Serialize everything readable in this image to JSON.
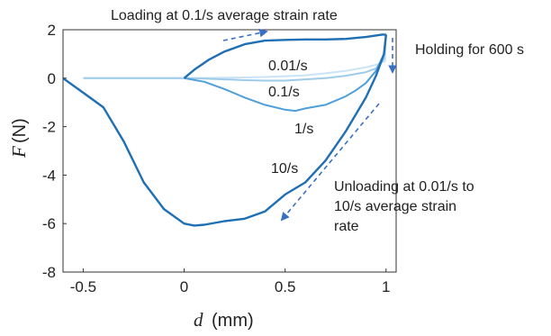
{
  "chart_data": {
    "type": "line",
    "title": "",
    "xlabel_symbol": "d",
    "xlabel_unit": "(mm)",
    "ylabel_symbol": "F",
    "ylabel_unit": "(N)",
    "xlim": [
      -0.6,
      1.05
    ],
    "ylim": [
      -8,
      2
    ],
    "xticks": [
      -0.5,
      0,
      0.5,
      1
    ],
    "xtick_labels": [
      "-0.5",
      "0",
      "0.5",
      "1"
    ],
    "yticks": [
      2,
      0,
      -2,
      -4,
      -6,
      -8
    ],
    "ytick_labels": [
      "2",
      "0",
      "-2",
      "-4",
      "-6",
      "-8"
    ],
    "grid": false,
    "colors": {
      "loading": "#1f6fb4",
      "rate_0_01": "#c9e4f5",
      "rate_0_1": "#9fcbea",
      "rate_1": "#4f9fd9",
      "rate_10": "#1f6fb4",
      "arrow": "#3a6fc4"
    },
    "annotations": {
      "loading": "Loading at 0.1/s average strain rate",
      "holding": "Holding for 600 s",
      "unloading_line1": "Unloading at 0.01/s to",
      "unloading_line2": "10/s average strain",
      "unloading_line3": "rate",
      "rate_0_01": "0.01/s",
      "rate_0_1": "0.1/s",
      "rate_1": "1/s",
      "rate_10": "10/s"
    },
    "series": [
      {
        "key": "loading",
        "label": "",
        "x": [
          0,
          0.05,
          0.12,
          0.2,
          0.3,
          0.4,
          0.5,
          0.6,
          0.7,
          0.8,
          0.9,
          0.98,
          1.0
        ],
        "y": [
          0,
          0.35,
          0.75,
          1.1,
          1.4,
          1.55,
          1.58,
          1.6,
          1.6,
          1.62,
          1.7,
          1.8,
          1.8
        ]
      },
      {
        "key": "rate_0_01",
        "label": "0.01/s",
        "x": [
          1.0,
          0.995,
          0.95,
          0.9,
          0.8,
          0.7,
          0.6,
          0.5,
          0.4,
          0.3,
          0.2,
          0.1,
          0.0,
          -0.2,
          -0.5
        ],
        "y": [
          1.8,
          0.7,
          0.55,
          0.45,
          0.3,
          0.2,
          0.12,
          0.08,
          0.05,
          0.03,
          0.02,
          0.01,
          0.0,
          0.0,
          0.0
        ]
      },
      {
        "key": "rate_0_1",
        "label": "0.1/s",
        "x": [
          1.0,
          0.99,
          0.95,
          0.9,
          0.8,
          0.7,
          0.6,
          0.5,
          0.4,
          0.3,
          0.2,
          0.1,
          0.0,
          -0.2,
          -0.5
        ],
        "y": [
          1.8,
          0.8,
          0.4,
          0.25,
          0.1,
          0.0,
          -0.05,
          -0.1,
          -0.1,
          -0.08,
          -0.05,
          -0.02,
          0.0,
          0.0,
          0.0
        ]
      },
      {
        "key": "rate_1",
        "label": "1/s",
        "x": [
          1.0,
          0.99,
          0.95,
          0.9,
          0.85,
          0.8,
          0.7,
          0.6,
          0.55,
          0.5,
          0.4,
          0.3,
          0.2,
          0.1,
          0.0
        ],
        "y": [
          1.8,
          1.0,
          0.3,
          -0.2,
          -0.5,
          -0.75,
          -1.1,
          -1.25,
          -1.35,
          -1.3,
          -1.1,
          -0.8,
          -0.45,
          -0.15,
          0.0
        ]
      },
      {
        "key": "rate_10",
        "label": "10/s",
        "x": [
          1.0,
          0.99,
          0.95,
          0.9,
          0.8,
          0.7,
          0.6,
          0.5,
          0.4,
          0.3,
          0.2,
          0.1,
          0.05,
          0.0,
          -0.1,
          -0.2,
          -0.3,
          -0.4,
          -0.5,
          -0.6
        ],
        "y": [
          1.8,
          1.0,
          0.1,
          -0.8,
          -2.2,
          -3.4,
          -4.3,
          -4.8,
          -5.5,
          -5.8,
          -5.9,
          -6.05,
          -6.08,
          -6.0,
          -5.4,
          -4.3,
          -2.6,
          -1.2,
          -0.6,
          0.0
        ]
      }
    ]
  }
}
